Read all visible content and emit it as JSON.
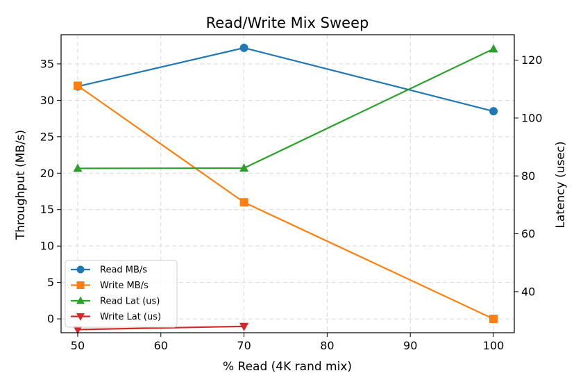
{
  "chart_data": {
    "type": "line",
    "title": "Read/Write Mix Sweep",
    "xlabel": "% Read (4K rand mix)",
    "ylabel": "Throughput (MB/s)",
    "y2label": "Latency (usec)",
    "xlim": [
      48,
      102.5
    ],
    "ylim": [
      -1.9,
      39
    ],
    "y2lim": [
      25.8,
      128.8
    ],
    "xticks": [
      50,
      60,
      70,
      80,
      90,
      100
    ],
    "yticks": [
      0,
      5,
      10,
      15,
      20,
      25,
      30,
      35
    ],
    "y2ticks": [
      40,
      60,
      80,
      100,
      120
    ],
    "grid": true,
    "legend_position": "lower-left",
    "series": [
      {
        "name": "Read MB/s",
        "axis": "left",
        "color": "#1f77b4",
        "marker": "circle",
        "x": [
          50,
          70,
          100
        ],
        "values": [
          31.9,
          37.2,
          28.5
        ]
      },
      {
        "name": "Write MB/s",
        "axis": "left",
        "color": "#ff7f0e",
        "marker": "square",
        "x": [
          50,
          70,
          100
        ],
        "values": [
          32.0,
          16.0,
          0.0
        ]
      },
      {
        "name": "Read Lat (us)",
        "axis": "right",
        "color": "#2ca02c",
        "marker": "triangle-up",
        "x": [
          50,
          70,
          100
        ],
        "values": [
          82.6,
          82.7,
          123.9
        ]
      },
      {
        "name": "Write Lat (us)",
        "axis": "right",
        "color": "#d62728",
        "marker": "triangle-down",
        "x": [
          50,
          70
        ],
        "values": [
          26.9,
          28.0
        ]
      }
    ]
  }
}
